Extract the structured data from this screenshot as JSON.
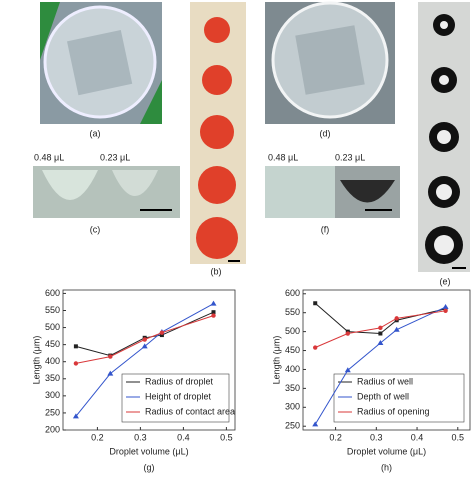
{
  "panels": {
    "a": "(a)",
    "b": "(b)",
    "c": "(c)",
    "d": "(d)",
    "e": "(e)",
    "f": "(f)",
    "c_left": "0.48 μL",
    "c_right": "0.23 μL",
    "f_left": "0.48 μL",
    "f_right": "0.23 μL"
  },
  "chart_data": [
    {
      "type": "line",
      "panel": "(g)",
      "x_label": "Droplet volume (μL)",
      "y_label": "Length (μm)",
      "x": [
        0.15,
        0.23,
        0.31,
        0.35,
        0.47
      ],
      "xlim": [
        0.12,
        0.52
      ],
      "xticks": [
        0.2,
        0.3,
        0.4,
        0.5
      ],
      "ylim": [
        200,
        610
      ],
      "yticks": [
        200,
        250,
        300,
        350,
        400,
        450,
        500,
        550,
        600
      ],
      "series": [
        {
          "name": "Radius of droplet",
          "color": "#222222",
          "values": [
            445,
            418,
            470,
            478,
            545
          ]
        },
        {
          "name": "Height of droplet",
          "color": "#3355cc",
          "values": [
            240,
            365,
            445,
            487,
            570
          ]
        },
        {
          "name": "Radius of contact area",
          "color": "#d9383a",
          "values": [
            395,
            415,
            465,
            485,
            535
          ]
        }
      ]
    },
    {
      "type": "line",
      "panel": "(h)",
      "x_label": "Droplet volume (μL)",
      "y_label": "Length (μm)",
      "x": [
        0.15,
        0.23,
        0.31,
        0.35,
        0.47
      ],
      "xlim": [
        0.12,
        0.53
      ],
      "xticks": [
        0.2,
        0.3,
        0.4,
        0.5
      ],
      "ylim": [
        240,
        610
      ],
      "yticks": [
        250,
        300,
        350,
        400,
        450,
        500,
        550,
        600
      ],
      "series": [
        {
          "name": "Radius of well",
          "color": "#222222",
          "values": [
            575,
            500,
            495,
            530,
            560
          ]
        },
        {
          "name": "Depth of well",
          "color": "#3355cc",
          "values": [
            255,
            398,
            470,
            505,
            565
          ]
        },
        {
          "name": "Radius of opening",
          "color": "#d9383a",
          "values": [
            458,
            495,
            510,
            535,
            555
          ]
        }
      ]
    }
  ]
}
